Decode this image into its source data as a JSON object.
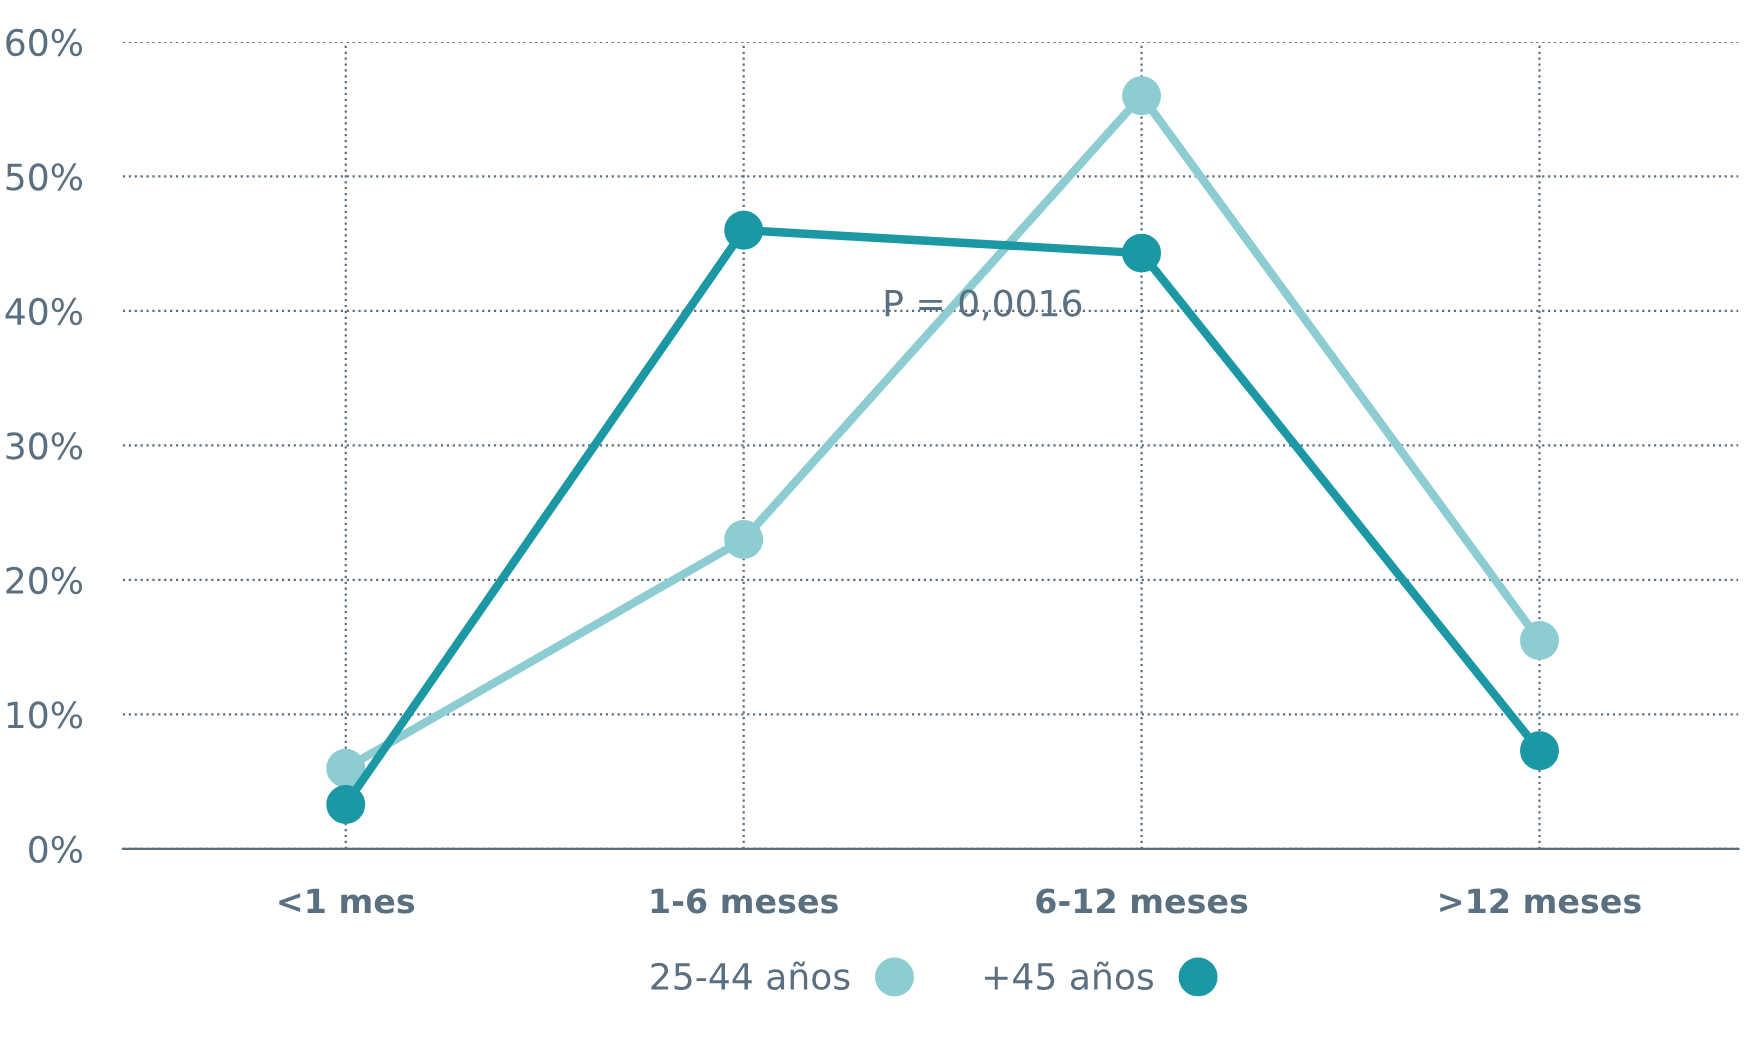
{
  "chart_data": {
    "type": "line",
    "categories": [
      "<1 mes",
      "1-6 meses",
      "6-12 meses",
      ">12 meses"
    ],
    "series": [
      {
        "name": "25-44 años",
        "color": "#8dcdd2",
        "values": [
          6,
          23,
          56,
          15.5
        ]
      },
      {
        "name": "+45 años",
        "color": "#1b98a3",
        "values": [
          3.3,
          46,
          44.3,
          7.3
        ]
      }
    ],
    "ylim": [
      0,
      60
    ],
    "yticks": [
      {
        "value": 0,
        "label": "0%"
      },
      {
        "value": 10,
        "label": "10%"
      },
      {
        "value": 20,
        "label": "20%"
      },
      {
        "value": 30,
        "label": "30%"
      },
      {
        "value": 40,
        "label": "40%"
      },
      {
        "value": 50,
        "label": "50%"
      },
      {
        "value": 60,
        "label": "60%"
      }
    ],
    "annotations": [
      "P = 0,0016"
    ],
    "grid": true,
    "legend": "bottom",
    "marker": "circle",
    "line_style": "solid"
  }
}
